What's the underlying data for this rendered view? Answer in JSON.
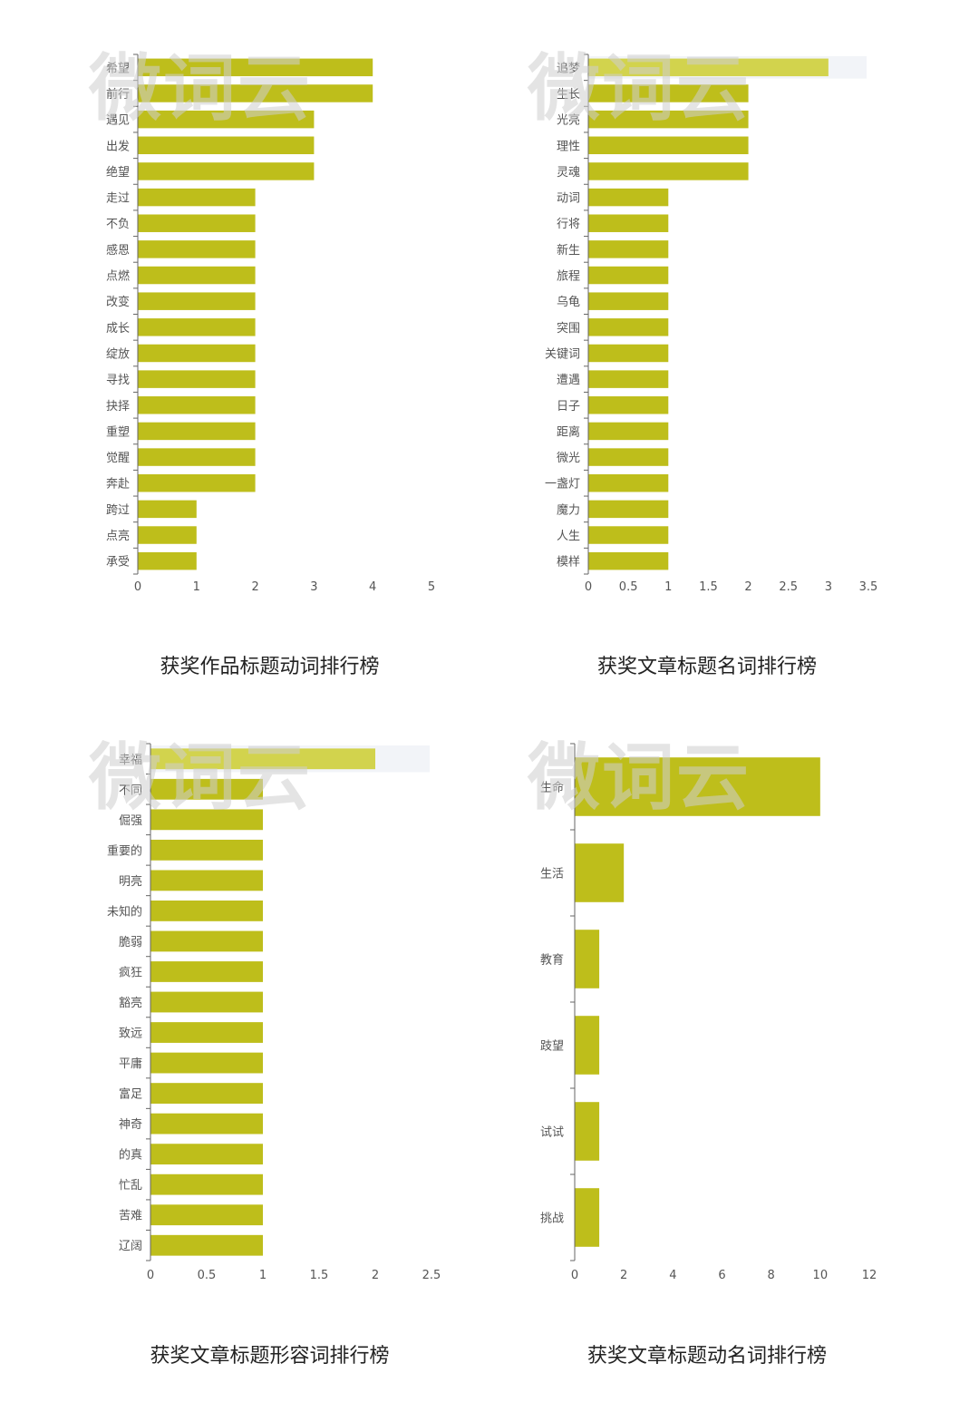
{
  "watermark_text": "微词云",
  "colors": {
    "bar": "#bebe1b",
    "bar_highlight": "#d2d34d",
    "axis": "#666666",
    "tooltip_shadow": "#f2f4f8"
  },
  "chart_data": [
    {
      "type": "bar",
      "orientation": "horizontal",
      "title": "获奖作品标题动词排行榜",
      "categories": [
        "希望",
        "前行",
        "遇见",
        "出发",
        "绝望",
        "走过",
        "不负",
        "感恩",
        "点燃",
        "改变",
        "成长",
        "绽放",
        "寻找",
        "抉择",
        "重塑",
        "觉醒",
        "奔赴",
        "跨过",
        "点亮",
        "承受"
      ],
      "values": [
        4,
        4,
        3,
        3,
        3,
        2,
        2,
        2,
        2,
        2,
        2,
        2,
        2,
        2,
        2,
        2,
        2,
        1,
        1,
        1
      ],
      "xlim": [
        0,
        5
      ],
      "xticks": [
        "0",
        "1",
        "2",
        "3",
        "4",
        "5"
      ],
      "highlight_index": -1,
      "grid": false
    },
    {
      "type": "bar",
      "orientation": "horizontal",
      "title": "获奖文章标题名词排行榜",
      "categories": [
        "追梦",
        "生长",
        "光亮",
        "理性",
        "灵魂",
        "动词",
        "行将",
        "新生",
        "旅程",
        "乌龟",
        "突围",
        "关键词",
        "遭遇",
        "日子",
        "距离",
        "微光",
        "一盏灯",
        "魔力",
        "人生",
        "模样"
      ],
      "values": [
        3,
        2,
        2,
        2,
        2,
        1,
        1,
        1,
        1,
        1,
        1,
        1,
        1,
        1,
        1,
        1,
        1,
        1,
        1,
        1
      ],
      "xlim": [
        0,
        3.5
      ],
      "xticks": [
        "0",
        "0.5",
        "1",
        "1.5",
        "2",
        "2.5",
        "3",
        "3.5"
      ],
      "highlight_index": 0,
      "grid": false
    },
    {
      "type": "bar",
      "orientation": "horizontal",
      "title": "获奖文章标题形容词排行榜",
      "categories": [
        "幸福",
        "不同",
        "倔强",
        "重要的",
        "明亮",
        "未知的",
        "脆弱",
        "疯狂",
        "豁亮",
        "致远",
        "平庸",
        "富足",
        "神奇",
        "的真",
        "忙乱",
        "苦难",
        "辽阔"
      ],
      "values": [
        2,
        1,
        1,
        1,
        1,
        1,
        1,
        1,
        1,
        1,
        1,
        1,
        1,
        1,
        1,
        1,
        1
      ],
      "xlim": [
        0,
        2.5
      ],
      "xticks": [
        "0",
        "0.5",
        "1",
        "1.5",
        "2",
        "2.5"
      ],
      "highlight_index": 0,
      "grid": false
    },
    {
      "type": "bar",
      "orientation": "horizontal",
      "title": "获奖文章标题动名词排行榜",
      "categories": [
        "生命",
        "生活",
        "教育",
        "跂望",
        "试试",
        "挑战"
      ],
      "values": [
        10,
        2,
        1,
        1,
        1,
        1
      ],
      "xlim": [
        0,
        12
      ],
      "xticks": [
        "0",
        "2",
        "4",
        "6",
        "8",
        "10",
        "12"
      ],
      "highlight_index": -1,
      "grid": false
    }
  ]
}
